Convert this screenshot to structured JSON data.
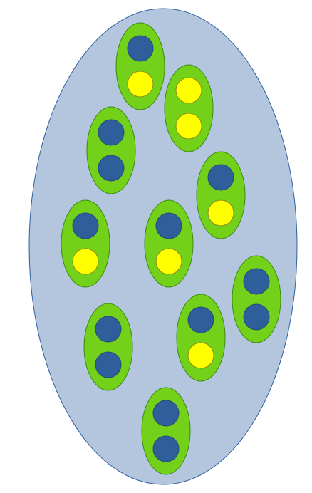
{
  "colors": {
    "background": "#ffffff",
    "outer_fill": "#b3c6de",
    "outer_stroke": "#2f5fa0",
    "pod_fill": "#74d11a",
    "pod_stroke": "#3c8a14",
    "blue_dot": "#2f5f9a",
    "blue_dot_stroke": "#244a7a",
    "yellow_dot": "#ffff00",
    "yellow_dot_stroke": "#8a8a1a"
  },
  "pods": [
    {
      "top": "blue",
      "bottom": "yellow"
    },
    {
      "top": "yellow",
      "bottom": "yellow"
    },
    {
      "top": "blue",
      "bottom": "blue"
    },
    {
      "top": "blue",
      "bottom": "yellow"
    },
    {
      "top": "blue",
      "bottom": "yellow"
    },
    {
      "top": "blue",
      "bottom": "yellow"
    },
    {
      "top": "blue",
      "bottom": "blue"
    },
    {
      "top": "blue",
      "bottom": "blue"
    },
    {
      "top": "blue",
      "bottom": "yellow"
    },
    {
      "top": "blue",
      "bottom": "blue"
    }
  ]
}
